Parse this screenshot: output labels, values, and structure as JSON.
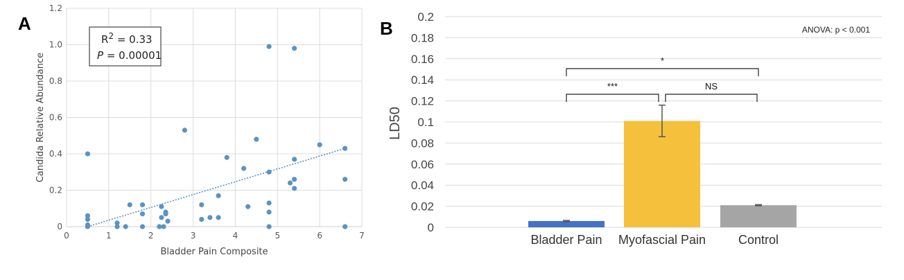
{
  "panels": {
    "a_label": "A",
    "b_label": "B"
  },
  "chart_data": [
    {
      "type": "scatter",
      "panel": "A",
      "xlabel": "Bladder Pain Composite",
      "ylabel": "Candida Relative Abundance",
      "xlim": [
        0,
        7
      ],
      "ylim": [
        0,
        1.2
      ],
      "x_ticks": [
        "0",
        "1",
        "2",
        "3",
        "4",
        "5",
        "6",
        "7"
      ],
      "y_ticks": [
        "0",
        "0.2",
        "0.4",
        "0.6",
        "0.8",
        "1.0",
        "1.2"
      ],
      "grid": true,
      "point_color": "#5b93c2",
      "points": [
        [
          0.5,
          0.4
        ],
        [
          0.5,
          0.06
        ],
        [
          0.5,
          0.04
        ],
        [
          0.5,
          0.01
        ],
        [
          0.5,
          0.0
        ],
        [
          1.2,
          0.02
        ],
        [
          1.2,
          0.0
        ],
        [
          1.4,
          0.0
        ],
        [
          1.5,
          0.12
        ],
        [
          1.8,
          0.12
        ],
        [
          1.8,
          0.07
        ],
        [
          1.8,
          0.0
        ],
        [
          2.2,
          0.0
        ],
        [
          2.25,
          0.11
        ],
        [
          2.25,
          0.05
        ],
        [
          2.3,
          0.0
        ],
        [
          2.35,
          0.07
        ],
        [
          2.35,
          0.08
        ],
        [
          2.4,
          0.03
        ],
        [
          2.8,
          0.53
        ],
        [
          3.2,
          0.12
        ],
        [
          3.2,
          0.04
        ],
        [
          3.4,
          0.05
        ],
        [
          3.6,
          0.17
        ],
        [
          3.6,
          0.05
        ],
        [
          3.8,
          0.38
        ],
        [
          4.2,
          0.32
        ],
        [
          4.3,
          0.11
        ],
        [
          4.5,
          0.48
        ],
        [
          4.8,
          0.99
        ],
        [
          4.8,
          0.3
        ],
        [
          4.8,
          0.13
        ],
        [
          4.8,
          0.08
        ],
        [
          4.8,
          0.0
        ],
        [
          5.3,
          0.24
        ],
        [
          5.4,
          0.98
        ],
        [
          5.4,
          0.37
        ],
        [
          5.4,
          0.26
        ],
        [
          5.4,
          0.21
        ],
        [
          6.0,
          0.45
        ],
        [
          6.6,
          0.43
        ],
        [
          6.6,
          0.26
        ],
        [
          6.6,
          0.0
        ]
      ],
      "trendline": {
        "x": [
          0.5,
          6.6
        ],
        "y": [
          0.0,
          0.43
        ],
        "color": "#5b93c2"
      },
      "annotation": {
        "r2": "R2 = 0.33",
        "r2_base": "R",
        "r2_sup": "2",
        "r2_rest": " = 0.33",
        "p_italic": "P",
        "p_rest": " = 0.00001"
      }
    },
    {
      "type": "bar",
      "panel": "B",
      "ylabel": "LD50",
      "categories": [
        "Bladder Pain",
        "Myofascial Pain",
        "Control"
      ],
      "values": [
        0.006,
        0.101,
        0.021
      ],
      "errors": [
        0.0005,
        0.015,
        0.0005
      ],
      "colors": [
        "#4472c4",
        "#f5c03c",
        "#a5a5a5"
      ],
      "ylim": [
        0,
        0.2
      ],
      "y_ticks": [
        "0",
        "0.02",
        "0.04",
        "0.06",
        "0.08",
        "0.1",
        "0.12",
        "0.14",
        "0.16",
        "0.18",
        "0.2"
      ],
      "grid": true,
      "annotation": "ANOVA: p < 0.001",
      "significance": [
        {
          "from": 0,
          "to": 2,
          "label": "*"
        },
        {
          "from": 0,
          "to": 1,
          "label": "***"
        },
        {
          "from": 1,
          "to": 2,
          "label": "NS"
        }
      ]
    }
  ]
}
